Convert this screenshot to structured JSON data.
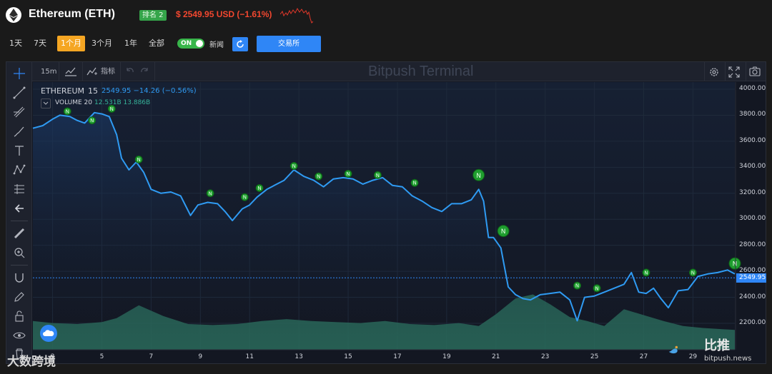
{
  "header": {
    "asset_name": "Ethereum (ETH)",
    "rank_badge": "排名 2",
    "price_line": "$ 2549.95 USD (−1.61%)",
    "colors": {
      "down": "#f2472f",
      "badge": "#35a54a"
    }
  },
  "range_tabs": [
    "1天",
    "7天",
    "1个月",
    "3个月",
    "1年",
    "全部"
  ],
  "active_range": "1个月",
  "news_toggle": {
    "state": "ON",
    "label": "新闻"
  },
  "exchange_button": "交易所",
  "chart_toolbar": {
    "interval": "15m",
    "indicators_label": "指标",
    "watermark": "Bitpush Terminal"
  },
  "legend": {
    "symbol": "ETHEREUM",
    "interval": "15",
    "values": "2549.95  −14.26 (−0.56%)",
    "volume_label": "VOLUME 20",
    "volume_values": "12.531B  13.886B"
  },
  "last_price_tag": "2549.95",
  "branding": {
    "corner": "大数跨境",
    "bitpush_cn": "比推",
    "bitpush_en": "bitpush.news"
  },
  "chart_data": {
    "type": "line",
    "title": "ETHEREUM 15",
    "ylim": [
      2000,
      4000
    ],
    "y_ticks": [
      "4000.00",
      "3800.00",
      "3600.00",
      "3400.00",
      "3200.00",
      "3000.00",
      "2800.00",
      "2600.00",
      "2400.00",
      "2200.00"
    ],
    "x_ticks": [
      "3",
      "5",
      "7",
      "9",
      "11",
      "13",
      "15",
      "17",
      "19",
      "21",
      "23",
      "25",
      "27",
      "29"
    ],
    "x_tick_values": [
      3,
      5,
      7,
      9,
      11,
      13,
      15,
      17,
      19,
      21,
      23,
      25,
      27,
      29
    ],
    "xlim": [
      2.2,
      30.7
    ],
    "series": [
      {
        "name": "price",
        "x": [
          2.2,
          2.6,
          3.0,
          3.3,
          3.7,
          4.0,
          4.3,
          4.7,
          5.0,
          5.3,
          5.6,
          5.8,
          6.1,
          6.4,
          6.7,
          7.0,
          7.4,
          7.8,
          8.2,
          8.6,
          8.9,
          9.3,
          9.7,
          10.0,
          10.3,
          10.7,
          11.0,
          11.3,
          11.7,
          12.0,
          12.4,
          12.8,
          13.2,
          13.6,
          14.0,
          14.4,
          14.8,
          15.2,
          15.6,
          16.0,
          16.4,
          16.8,
          17.2,
          17.6,
          18.0,
          18.4,
          18.8,
          19.2,
          19.6,
          20.0,
          20.3,
          20.5,
          20.7,
          20.9,
          21.2,
          21.5,
          21.8,
          22.1,
          22.4,
          22.8,
          23.2,
          23.6,
          24.0,
          24.3,
          24.6,
          25.0,
          25.4,
          25.8,
          26.2,
          26.5,
          26.8,
          27.1,
          27.4,
          27.7,
          28.0,
          28.4,
          28.8,
          29.2,
          29.6,
          30.0,
          30.4,
          30.7
        ],
        "values": [
          3700,
          3720,
          3770,
          3800,
          3790,
          3760,
          3740,
          3820,
          3810,
          3790,
          3650,
          3470,
          3380,
          3440,
          3360,
          3230,
          3200,
          3210,
          3180,
          3030,
          3110,
          3130,
          3120,
          3060,
          2990,
          3080,
          3110,
          3170,
          3230,
          3260,
          3300,
          3380,
          3330,
          3300,
          3250,
          3310,
          3320,
          3310,
          3270,
          3300,
          3320,
          3260,
          3250,
          3180,
          3140,
          3090,
          3060,
          3120,
          3120,
          3150,
          3230,
          3140,
          2860,
          2860,
          2780,
          2480,
          2420,
          2390,
          2380,
          2420,
          2430,
          2440,
          2380,
          2220,
          2400,
          2410,
          2440,
          2470,
          2500,
          2590,
          2440,
          2430,
          2470,
          2390,
          2320,
          2450,
          2460,
          2560,
          2580,
          2590,
          2610,
          2580
        ]
      },
      {
        "name": "volume",
        "x": [
          2.2,
          3.0,
          4.0,
          5.0,
          5.6,
          6.5,
          7.5,
          8.5,
          9.5,
          10.5,
          11.5,
          12.5,
          13.5,
          14.5,
          15.5,
          16.5,
          17.5,
          18.5,
          19.5,
          20.3,
          21.0,
          21.8,
          22.5,
          23.2,
          24.0,
          24.7,
          25.4,
          26.2,
          27.0,
          27.8,
          28.6,
          29.4,
          30.7
        ],
        "values": [
          2.9,
          2.7,
          2.6,
          2.8,
          3.2,
          4.5,
          3.4,
          2.6,
          2.5,
          2.6,
          2.9,
          3.1,
          2.9,
          2.8,
          2.7,
          2.9,
          2.6,
          2.5,
          2.7,
          2.4,
          3.6,
          5.2,
          5.6,
          4.6,
          3.3,
          2.9,
          2.4,
          4.1,
          3.5,
          2.9,
          2.4,
          2.2,
          2.0
        ]
      }
    ],
    "news_markers_x": [
      3.6,
      4.6,
      5.4,
      6.5,
      9.4,
      10.8,
      11.4,
      12.8,
      13.8,
      15.0,
      16.2,
      17.7,
      20.3,
      21.3,
      24.3,
      25.1,
      27.1,
      29.0,
      30.7
    ],
    "news_markers_y": [
      3830,
      3760,
      3850,
      3460,
      3200,
      3170,
      3240,
      3410,
      3330,
      3350,
      3340,
      3280,
      3340,
      2910,
      2490,
      2470,
      2590,
      2590,
      2660
    ],
    "news_marker_label": "N"
  }
}
